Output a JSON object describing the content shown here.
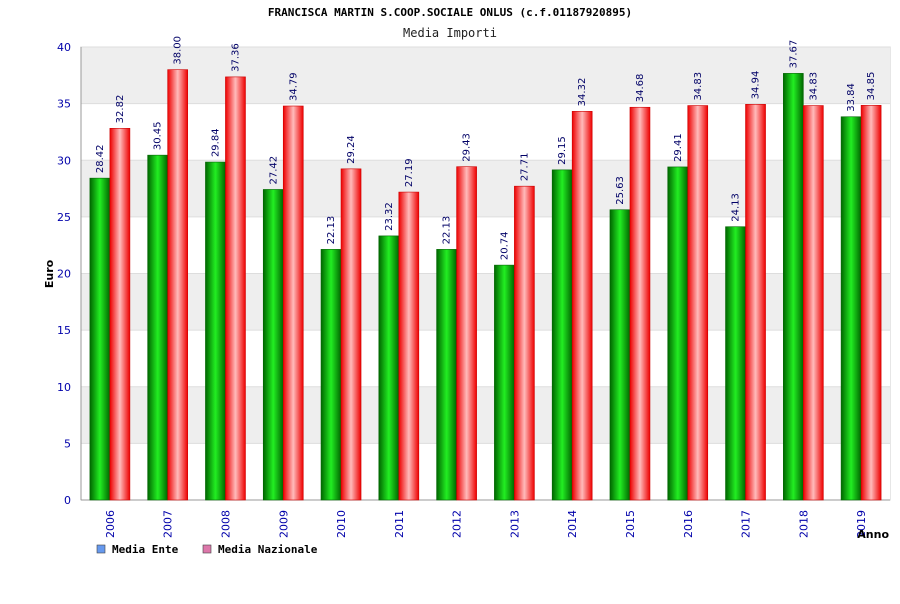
{
  "chart_data": {
    "type": "bar",
    "title": "FRANCISCA MARTIN S.COOP.SOCIALE ONLUS (c.f.01187920895)",
    "subtitle": "Media Importi",
    "xlabel": "Anno",
    "ylabel": "Euro",
    "ylim": [
      0,
      40
    ],
    "yticks": [
      0,
      5,
      10,
      15,
      20,
      25,
      30,
      35,
      40
    ],
    "grid": true,
    "legend_position": "bottom-left",
    "categories": [
      "2006",
      "2007",
      "2008",
      "2009",
      "2010",
      "2011",
      "2012",
      "2013",
      "2014",
      "2015",
      "2016",
      "2017",
      "2018",
      "2019"
    ],
    "series": [
      {
        "name": "Media Ente",
        "color": "#00aa00",
        "values": [
          28.42,
          30.45,
          29.84,
          27.42,
          22.13,
          23.32,
          22.13,
          20.74,
          29.15,
          25.63,
          29.41,
          24.13,
          37.67,
          33.84
        ],
        "labels": [
          "28.42",
          "30.45",
          "29.84",
          "27.42",
          "22.13",
          "23.32",
          "22.13",
          "20.74",
          "29.15",
          "25.63",
          "29.41",
          "24.13",
          "37.67",
          "33.84"
        ]
      },
      {
        "name": "Media Nazionale",
        "color": "#ee1111",
        "values": [
          32.82,
          38.0,
          37.36,
          34.79,
          29.24,
          27.19,
          29.43,
          27.71,
          34.32,
          34.68,
          34.83,
          34.94,
          34.83,
          34.85
        ],
        "labels": [
          "32.82",
          "38.00",
          "37.36",
          "34.79",
          "29.24",
          "27.19",
          "29.43",
          "27.71",
          "34.32",
          "34.68",
          "34.83",
          "34.94",
          "34.83",
          "34.85"
        ]
      }
    ],
    "legend": [
      {
        "label": "Media Ente",
        "swatch": "#6699ee"
      },
      {
        "label": "Media Nazionale",
        "swatch": "#dd77aa"
      }
    ]
  }
}
